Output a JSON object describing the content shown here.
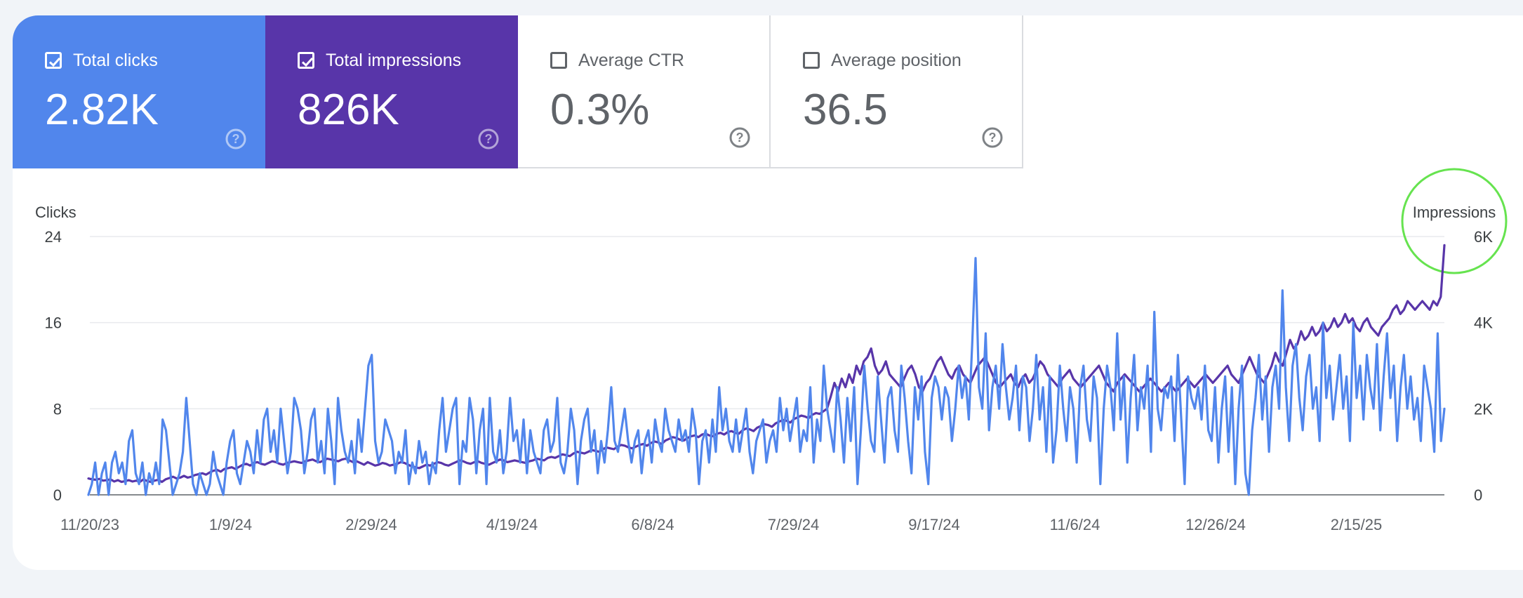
{
  "metrics": [
    {
      "key": "clicks",
      "label": "Total clicks",
      "value": "2.82K",
      "checked": true
    },
    {
      "key": "impr",
      "label": "Total impressions",
      "value": "826K",
      "checked": true
    },
    {
      "key": "ctr",
      "label": "Average CTR",
      "value": "0.3%",
      "checked": false
    },
    {
      "key": "pos",
      "label": "Average position",
      "value": "36.5",
      "checked": false
    }
  ],
  "colors": {
    "clicks": "#5186ec",
    "impressions": "#5835a9",
    "grid": "#e8eaed",
    "highlight": "#66e34f"
  },
  "chart_data": {
    "type": "line",
    "left_axis_title": "Clicks",
    "right_axis_title": "Impressions",
    "left_ylim": [
      0,
      24
    ],
    "right_ylim": [
      0,
      6000
    ],
    "left_ticks": [
      "0",
      "8",
      "16",
      "24"
    ],
    "right_ticks": [
      "0",
      "2K",
      "4K",
      "6K"
    ],
    "x_tick_labels": [
      "11/20/23",
      "1/9/24",
      "2/29/24",
      "4/19/24",
      "6/8/24",
      "7/29/24",
      "9/17/24",
      "11/6/24",
      "12/26/24",
      "2/15/25"
    ],
    "x_range_days": [
      0,
      485
    ],
    "series": [
      {
        "name": "Clicks",
        "axis": "left",
        "values": [
          0,
          1,
          3,
          0,
          2,
          3,
          0,
          3,
          4,
          2,
          3,
          1,
          5,
          6,
          2,
          1,
          3,
          0,
          2,
          1,
          3,
          1,
          7,
          6,
          3,
          0,
          1,
          2,
          4,
          9,
          5,
          1,
          0,
          2,
          1,
          0,
          1,
          4,
          2,
          1,
          0,
          3,
          5,
          6,
          2,
          1,
          3,
          5,
          4,
          2,
          6,
          3,
          7,
          8,
          4,
          6,
          3,
          8,
          5,
          2,
          4,
          9,
          8,
          6,
          2,
          4,
          7,
          8,
          3,
          5,
          2,
          8,
          5,
          1,
          9,
          6,
          4,
          3,
          5,
          2,
          7,
          4,
          8,
          12,
          13,
          5,
          3,
          4,
          7,
          6,
          5,
          2,
          4,
          3,
          6,
          1,
          3,
          2,
          5,
          3,
          4,
          1,
          3,
          2,
          6,
          9,
          4,
          6,
          8,
          9,
          1,
          5,
          4,
          9,
          7,
          2,
          6,
          8,
          1,
          9,
          4,
          3,
          6,
          2,
          4,
          9,
          5,
          6,
          3,
          7,
          2,
          6,
          4,
          3,
          2,
          6,
          7,
          4,
          5,
          9,
          3,
          2,
          4,
          8,
          6,
          1,
          5,
          7,
          8,
          4,
          6,
          2,
          5,
          3,
          6,
          10,
          5,
          4,
          6,
          8,
          5,
          3,
          5,
          6,
          2,
          5,
          6,
          3,
          7,
          5,
          4,
          8,
          6,
          5,
          4,
          7,
          5,
          6,
          4,
          8,
          6,
          1,
          5,
          6,
          3,
          7,
          4,
          10,
          6,
          8,
          5,
          4,
          7,
          4,
          6,
          8,
          4,
          2,
          5,
          6,
          7,
          3,
          5,
          6,
          4,
          9,
          6,
          8,
          5,
          7,
          9,
          4,
          6,
          5,
          10,
          3,
          7,
          5,
          12,
          8,
          6,
          4,
          10,
          7,
          3,
          9,
          5,
          10,
          1,
          6,
          12,
          8,
          5,
          4,
          11,
          7,
          3,
          9,
          10,
          6,
          4,
          12,
          9,
          5,
          2,
          10,
          7,
          11,
          4,
          1,
          9,
          11,
          10,
          7,
          10,
          9,
          5,
          8,
          12,
          9,
          11,
          7,
          14,
          22,
          10,
          8,
          15,
          6,
          10,
          12,
          8,
          14,
          10,
          7,
          9,
          12,
          6,
          11,
          10,
          5,
          8,
          13,
          7,
          10,
          4,
          11,
          3,
          6,
          12,
          8,
          5,
          10,
          8,
          3,
          10,
          12,
          7,
          5,
          11,
          9,
          1,
          8,
          12,
          10,
          6,
          15,
          7,
          11,
          3,
          9,
          13,
          6,
          10,
          8,
          12,
          4,
          17,
          8,
          6,
          10,
          9,
          11,
          5,
          13,
          7,
          1,
          11,
          9,
          8,
          10,
          7,
          12,
          6,
          5,
          10,
          3,
          8,
          11,
          4,
          10,
          1,
          8,
          12,
          2,
          0,
          6,
          9,
          13,
          7,
          11,
          4,
          10,
          12,
          8,
          19,
          10,
          5,
          12,
          14,
          9,
          6,
          11,
          13,
          8,
          10,
          5,
          16,
          9,
          12,
          7,
          10,
          13,
          8,
          11,
          5,
          16,
          9,
          12,
          7,
          13,
          10,
          8,
          14,
          6,
          11,
          15,
          9,
          12,
          5,
          10,
          13,
          8,
          11,
          7,
          9,
          5,
          12,
          10,
          8,
          4,
          15,
          5,
          8
        ],
        "note": "approximate daily values read from chart"
      },
      {
        "name": "Impressions",
        "axis": "right",
        "values": [
          380,
          360,
          350,
          370,
          330,
          340,
          360,
          310,
          340,
          300,
          320,
          340,
          310,
          330,
          300,
          360,
          320,
          300,
          330,
          350,
          300,
          360,
          390,
          420,
          380,
          400,
          440,
          400,
          420,
          460,
          480,
          500,
          470,
          520,
          560,
          580,
          540,
          600,
          620,
          640,
          600,
          650,
          700,
          720,
          680,
          740,
          760,
          720,
          700,
          740,
          780,
          760,
          720,
          700,
          740,
          760,
          780,
          760,
          740,
          780,
          800,
          820,
          780,
          760,
          800,
          840,
          820,
          800,
          780,
          820,
          840,
          800,
          760,
          780,
          740,
          700,
          760,
          720,
          680,
          700,
          740,
          720,
          680,
          700,
          720,
          760,
          740,
          700,
          660,
          640,
          620,
          660,
          700,
          680,
          720,
          760,
          740,
          700,
          680,
          720,
          760,
          800,
          780,
          740,
          720,
          760,
          780,
          740,
          720,
          700,
          740,
          780,
          820,
          800,
          760,
          780,
          800,
          780,
          760,
          740,
          780,
          800,
          840,
          820,
          800,
          860,
          880,
          860,
          900,
          940,
          920,
          900,
          960,
          1000,
          980,
          960,
          1000,
          1040,
          1020,
          1000,
          1060,
          1100,
          1080,
          1060,
          1120,
          1160,
          1140,
          1100,
          1080,
          1120,
          1160,
          1180,
          1140,
          1200,
          1240,
          1220,
          1180,
          1260,
          1300,
          1340,
          1320,
          1280,
          1260,
          1320,
          1360,
          1380,
          1340,
          1400,
          1420,
          1380,
          1360,
          1420,
          1440,
          1400,
          1460,
          1480,
          1440,
          1420,
          1500,
          1540,
          1520,
          1480,
          1560,
          1600,
          1640,
          1620,
          1580,
          1660,
          1700,
          1740,
          1720,
          1680,
          1760,
          1800,
          1840,
          1820,
          1780,
          1860,
          1900,
          1880,
          1940,
          2000,
          2280,
          2600,
          2400,
          2700,
          2500,
          2800,
          2600,
          3000,
          2800,
          3100,
          3200,
          3400,
          3000,
          2800,
          2900,
          3100,
          2800,
          2700,
          2600,
          2500,
          2700,
          2900,
          3000,
          2800,
          2500,
          2400,
          2600,
          2700,
          2900,
          3100,
          3200,
          3000,
          2800,
          2700,
          2900,
          3000,
          2800,
          2700,
          2600,
          2800,
          3000,
          3100,
          3200,
          3000,
          2800,
          2600,
          2500,
          2600,
          2700,
          2800,
          2600,
          2500,
          2700,
          2800,
          2600,
          2700,
          2900,
          3100,
          3000,
          2800,
          2700,
          2600,
          2500,
          2700,
          2800,
          2900,
          2700,
          2600,
          2500,
          2600,
          2700,
          2800,
          2900,
          3000,
          2800,
          2600,
          2500,
          2400,
          2600,
          2700,
          2800,
          2700,
          2600,
          2500,
          2400,
          2500,
          2600,
          2700,
          2600,
          2500,
          2400,
          2500,
          2600,
          2500,
          2400,
          2500,
          2600,
          2700,
          2600,
          2500,
          2600,
          2700,
          2800,
          2700,
          2600,
          2700,
          2800,
          2900,
          3000,
          2800,
          2700,
          2600,
          2800,
          3000,
          3200,
          3000,
          2800,
          2700,
          2600,
          2800,
          3000,
          3300,
          3100,
          3000,
          3300,
          3600,
          3400,
          3500,
          3800,
          3600,
          3700,
          3900,
          3700,
          3800,
          4000,
          3800,
          3900,
          4100,
          3900,
          4000,
          4200,
          4000,
          4100,
          3900,
          3800,
          4000,
          4100,
          3900,
          3800,
          3700,
          3900,
          4000,
          4100,
          4300,
          4400,
          4200,
          4300,
          4500,
          4400,
          4300,
          4400,
          4500,
          4400,
          4300,
          4500,
          4400,
          4600,
          5800
        ],
        "note": "approximate daily values read from chart"
      }
    ],
    "annotations": [
      {
        "type": "circle",
        "target": "Impressions",
        "description": "highlight around right axis title"
      }
    ]
  }
}
